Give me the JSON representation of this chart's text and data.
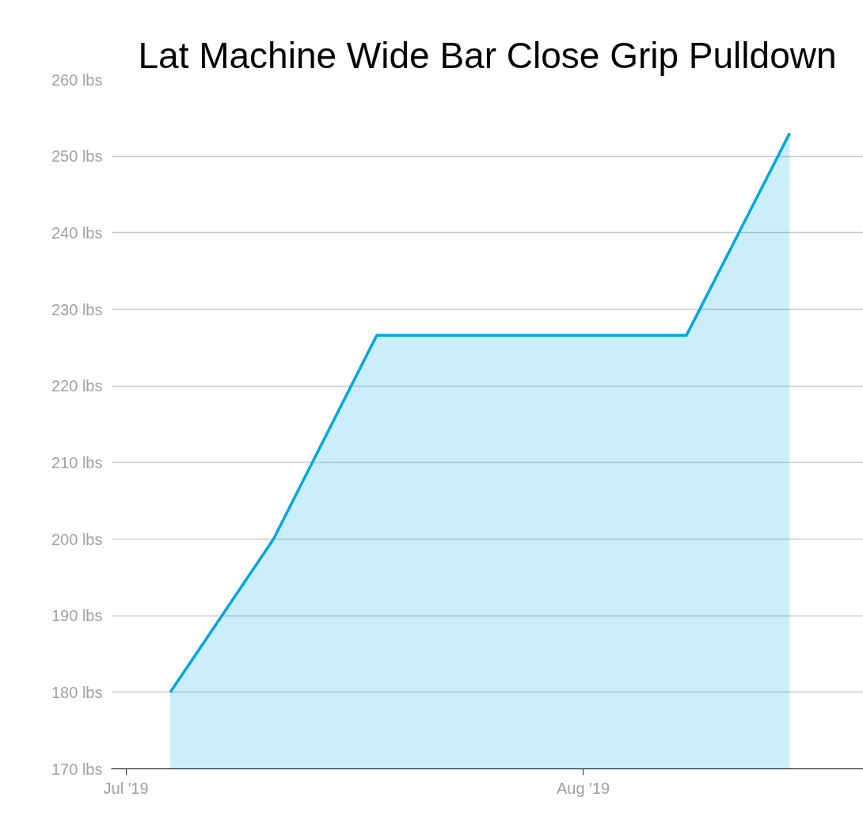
{
  "chart_data": {
    "type": "area",
    "title": "Lat Machine Wide Bar Close Grip Pulldown",
    "x": [
      "2019-07-04",
      "2019-07-11",
      "2019-07-18",
      "2019-08-08",
      "2019-08-15"
    ],
    "series": [
      {
        "color": "#00a6e6",
        "values": [
          180,
          200,
          226.6,
          226.6,
          253
        ]
      }
    ],
    "xlim": [
      "2019-06-30",
      "2019-08-20"
    ],
    "xticks": [
      {
        "value": "2019-07-01",
        "label": "Jul '19"
      },
      {
        "value": "2019-08-01",
        "label": "Aug '19"
      }
    ],
    "ylim": [
      170,
      260
    ],
    "yticks": [
      {
        "value": 170,
        "label": "170 lbs"
      },
      {
        "value": 180,
        "label": "180 lbs"
      },
      {
        "value": 190,
        "label": "190 lbs"
      },
      {
        "value": 200,
        "label": "200 lbs"
      },
      {
        "value": 210,
        "label": "210 lbs"
      },
      {
        "value": 220,
        "label": "220 lbs"
      },
      {
        "value": 230,
        "label": "230 lbs"
      },
      {
        "value": 240,
        "label": "240 lbs"
      },
      {
        "value": 250,
        "label": "250 lbs"
      },
      {
        "value": 260,
        "label": "260 lbs"
      }
    ],
    "grid": "y"
  }
}
